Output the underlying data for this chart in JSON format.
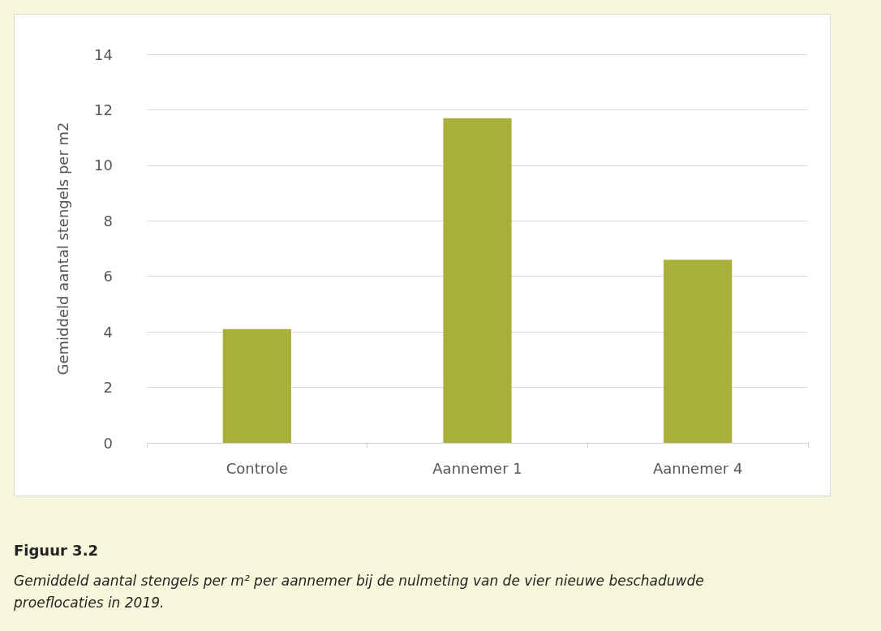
{
  "chart_data": {
    "type": "bar",
    "title": "Figuur 3.2",
    "annotations": [
      "Gemiddeld aantal stengels per m² per aannemer bij de nulmeting van de vier nieuwe beschaduwde proeflocaties in 2019."
    ],
    "ylabel": "Gemiddeld aantal stengels per m2",
    "categories": [
      "Controle",
      "Aannemer 1",
      "Aannemer 4"
    ],
    "values": [
      4.1,
      11.7,
      6.6
    ],
    "color": "#a8b03a",
    "ylim": [
      0,
      14
    ],
    "yticks": [
      0,
      2,
      4,
      6,
      8,
      10,
      12,
      14
    ],
    "grid": "y"
  }
}
